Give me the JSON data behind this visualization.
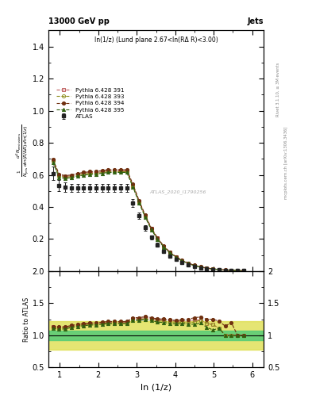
{
  "title_left": "13000 GeV pp",
  "title_right": "Jets",
  "subtitle": "ln(1/z) (Lund plane 2.67<ln(RΔ R)<3.00)",
  "watermark": "ATLAS_2020_I1790256",
  "right_label_top": "Rivet 3.1.10, ≥ 3M events",
  "right_label_bottom": "mcplots.cern.ch [arXiv:1306.3436]",
  "ylabel_main": "$\\frac{1}{N_{\\mathrm{jets}}}\\frac{d^2 N_{\\mathrm{emissions}}}{d\\ln(R/\\Delta R)\\,d\\ln(1/z)}$",
  "ylabel_ratio": "Ratio to ATLAS",
  "xlabel": "ln (1/z)",
  "xlim": [
    0.7,
    6.3
  ],
  "ylim_main": [
    0.0,
    1.5
  ],
  "ylim_ratio": [
    0.5,
    2.0
  ],
  "x_ticks": [
    1,
    2,
    3,
    4,
    5,
    6
  ],
  "atlas_x": [
    0.82,
    0.98,
    1.14,
    1.3,
    1.46,
    1.62,
    1.78,
    1.94,
    2.1,
    2.26,
    2.42,
    2.58,
    2.74,
    2.9,
    3.06,
    3.22,
    3.38,
    3.54,
    3.7,
    3.86,
    4.02,
    4.18,
    4.34,
    4.5,
    4.66,
    4.82,
    4.98,
    5.14,
    5.3,
    5.46,
    5.62,
    5.78
  ],
  "atlas_y": [
    0.61,
    0.535,
    0.525,
    0.52,
    0.52,
    0.52,
    0.52,
    0.52,
    0.52,
    0.52,
    0.52,
    0.52,
    0.52,
    0.425,
    0.345,
    0.27,
    0.21,
    0.165,
    0.125,
    0.096,
    0.073,
    0.054,
    0.04,
    0.029,
    0.021,
    0.016,
    0.012,
    0.009,
    0.007,
    0.005,
    0.004,
    0.003
  ],
  "atlas_yerr_lo": [
    0.04,
    0.035,
    0.03,
    0.025,
    0.025,
    0.025,
    0.025,
    0.025,
    0.025,
    0.025,
    0.025,
    0.025,
    0.025,
    0.025,
    0.02,
    0.018,
    0.014,
    0.011,
    0.009,
    0.007,
    0.005,
    0.004,
    0.003,
    0.002,
    0.002,
    0.001,
    0.001,
    0.001,
    0.001,
    0.0005,
    0.0004,
    0.0003
  ],
  "atlas_yerr_hi": [
    0.04,
    0.035,
    0.03,
    0.025,
    0.025,
    0.025,
    0.025,
    0.025,
    0.025,
    0.025,
    0.025,
    0.025,
    0.025,
    0.025,
    0.02,
    0.018,
    0.014,
    0.011,
    0.009,
    0.007,
    0.005,
    0.004,
    0.003,
    0.002,
    0.002,
    0.001,
    0.001,
    0.001,
    0.001,
    0.0005,
    0.0004,
    0.0003
  ],
  "mc_x": [
    0.82,
    0.98,
    1.14,
    1.3,
    1.46,
    1.62,
    1.78,
    1.94,
    2.1,
    2.26,
    2.42,
    2.58,
    2.74,
    2.9,
    3.06,
    3.22,
    3.38,
    3.54,
    3.7,
    3.86,
    4.02,
    4.18,
    4.34,
    4.5,
    4.66,
    4.82,
    4.98,
    5.14,
    5.3,
    5.46,
    5.62,
    5.78
  ],
  "pythia391_y": [
    0.69,
    0.6,
    0.59,
    0.595,
    0.605,
    0.61,
    0.615,
    0.615,
    0.62,
    0.625,
    0.625,
    0.625,
    0.625,
    0.535,
    0.435,
    0.345,
    0.265,
    0.205,
    0.155,
    0.118,
    0.089,
    0.066,
    0.049,
    0.036,
    0.026,
    0.019,
    0.014,
    0.01,
    0.007,
    0.005,
    0.004,
    0.003
  ],
  "pythia393_y": [
    0.685,
    0.595,
    0.585,
    0.59,
    0.6,
    0.605,
    0.61,
    0.61,
    0.615,
    0.62,
    0.62,
    0.62,
    0.62,
    0.53,
    0.43,
    0.34,
    0.262,
    0.202,
    0.153,
    0.116,
    0.088,
    0.065,
    0.048,
    0.035,
    0.026,
    0.019,
    0.014,
    0.01,
    0.007,
    0.005,
    0.004,
    0.003
  ],
  "pythia394_y": [
    0.695,
    0.605,
    0.595,
    0.6,
    0.61,
    0.615,
    0.62,
    0.622,
    0.627,
    0.632,
    0.632,
    0.632,
    0.632,
    0.542,
    0.44,
    0.349,
    0.268,
    0.207,
    0.157,
    0.119,
    0.09,
    0.067,
    0.05,
    0.037,
    0.027,
    0.02,
    0.015,
    0.011,
    0.008,
    0.006,
    0.004,
    0.003
  ],
  "pythia395_y": [
    0.675,
    0.585,
    0.578,
    0.583,
    0.593,
    0.598,
    0.603,
    0.605,
    0.61,
    0.615,
    0.615,
    0.615,
    0.615,
    0.525,
    0.425,
    0.336,
    0.258,
    0.199,
    0.15,
    0.114,
    0.086,
    0.064,
    0.047,
    0.034,
    0.025,
    0.018,
    0.013,
    0.01,
    0.007,
    0.005,
    0.004,
    0.003
  ],
  "atlas_band_green_lo": 0.93,
  "atlas_band_green_hi": 1.07,
  "atlas_band_yellow_lo": 0.78,
  "atlas_band_yellow_hi": 1.22,
  "color_391": "#c06060",
  "color_393": "#909020",
  "color_394": "#703010",
  "color_395": "#306010",
  "atlas_color": "#222222",
  "green_band_color": "#55cc77",
  "yellow_band_color": "#dddd44",
  "background_color": "#ffffff"
}
